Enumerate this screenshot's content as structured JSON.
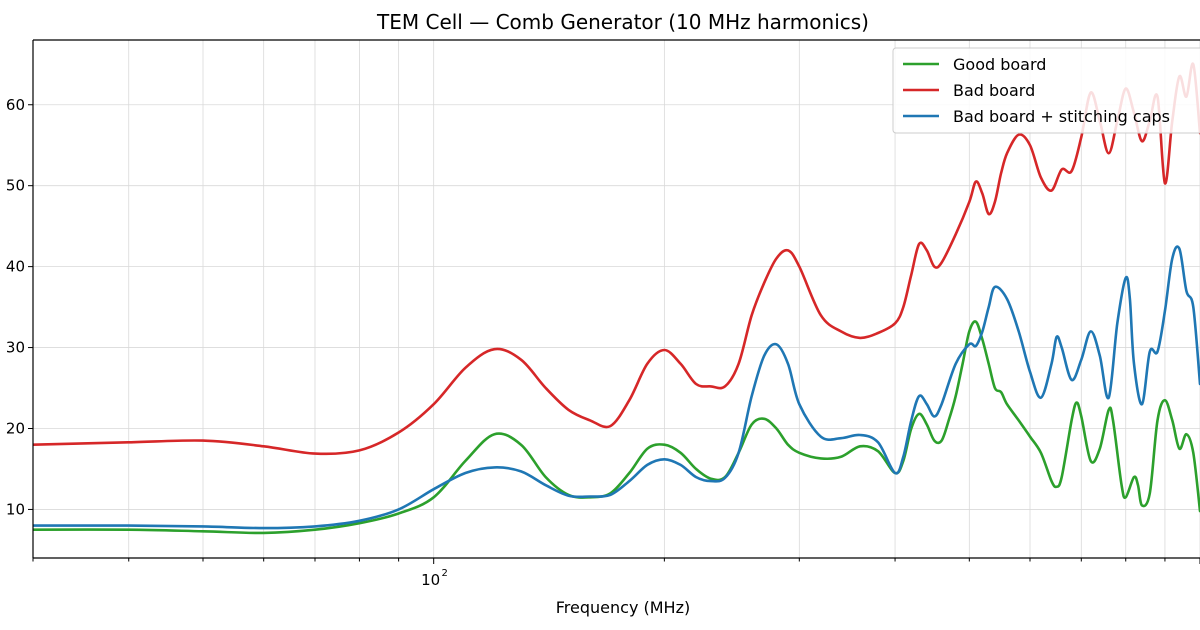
{
  "chart_data": {
    "type": "line",
    "title": "TEM Cell — Comb Generator (10 MHz harmonics)",
    "xlabel": "Frequency (MHz)",
    "ylabel": "",
    "xscale": "log",
    "xlim": [
      30,
      1000
    ],
    "ylim": [
      4,
      68
    ],
    "xticks": [
      {
        "value": 100,
        "base": "10",
        "exp": "2"
      }
    ],
    "yticks": [
      10,
      20,
      30,
      40,
      50,
      60
    ],
    "grid": true,
    "legend": "top-right",
    "series": [
      {
        "name": "Good board",
        "color": "#2ca02c",
        "points": [
          [
            30,
            7.5
          ],
          [
            40,
            7.5
          ],
          [
            50,
            7.3
          ],
          [
            60,
            7.1
          ],
          [
            70,
            7.5
          ],
          [
            80,
            8.3
          ],
          [
            90,
            9.5
          ],
          [
            100,
            11.5
          ],
          [
            110,
            16
          ],
          [
            120,
            19.3
          ],
          [
            130,
            18
          ],
          [
            140,
            14
          ],
          [
            150,
            11.8
          ],
          [
            160,
            11.5
          ],
          [
            170,
            12
          ],
          [
            180,
            14.5
          ],
          [
            190,
            17.5
          ],
          [
            200,
            18
          ],
          [
            210,
            17
          ],
          [
            220,
            15
          ],
          [
            230,
            13.8
          ],
          [
            240,
            14
          ],
          [
            250,
            17
          ],
          [
            260,
            20.5
          ],
          [
            270,
            21.2
          ],
          [
            280,
            20
          ],
          [
            290,
            18
          ],
          [
            300,
            17
          ],
          [
            320,
            16.3
          ],
          [
            340,
            16.5
          ],
          [
            360,
            17.8
          ],
          [
            380,
            17.2
          ],
          [
            400,
            14.5
          ],
          [
            410,
            16
          ],
          [
            420,
            20
          ],
          [
            430,
            21.8
          ],
          [
            440,
            20.5
          ],
          [
            450,
            18.5
          ],
          [
            460,
            18.5
          ],
          [
            470,
            21
          ],
          [
            480,
            24
          ],
          [
            490,
            28
          ],
          [
            500,
            32
          ],
          [
            510,
            33.2
          ],
          [
            520,
            31
          ],
          [
            530,
            28
          ],
          [
            540,
            25
          ],
          [
            550,
            24.5
          ],
          [
            560,
            23
          ],
          [
            580,
            21
          ],
          [
            600,
            19
          ],
          [
            620,
            17
          ],
          [
            640,
            13.5
          ],
          [
            650,
            12.8
          ],
          [
            660,
            14
          ],
          [
            680,
            21
          ],
          [
            690,
            23.2
          ],
          [
            700,
            21.5
          ],
          [
            720,
            16
          ],
          [
            740,
            17.5
          ],
          [
            760,
            22.3
          ],
          [
            770,
            21
          ],
          [
            790,
            13
          ],
          [
            800,
            11.5
          ],
          [
            820,
            14
          ],
          [
            830,
            13
          ],
          [
            840,
            10.5
          ],
          [
            860,
            12
          ],
          [
            880,
            21
          ],
          [
            900,
            23.5
          ],
          [
            920,
            21
          ],
          [
            940,
            17.5
          ],
          [
            960,
            19.3
          ],
          [
            980,
            17
          ],
          [
            1000,
            9.8
          ]
        ]
      },
      {
        "name": "Bad board",
        "color": "#d62728",
        "points": [
          [
            30,
            18
          ],
          [
            40,
            18.3
          ],
          [
            50,
            18.5
          ],
          [
            60,
            17.8
          ],
          [
            70,
            16.9
          ],
          [
            80,
            17.3
          ],
          [
            90,
            19.5
          ],
          [
            100,
            23
          ],
          [
            110,
            27.5
          ],
          [
            120,
            29.8
          ],
          [
            130,
            28.5
          ],
          [
            140,
            25
          ],
          [
            150,
            22.3
          ],
          [
            160,
            21
          ],
          [
            170,
            20.3
          ],
          [
            180,
            23.5
          ],
          [
            190,
            28
          ],
          [
            200,
            29.7
          ],
          [
            210,
            28
          ],
          [
            220,
            25.5
          ],
          [
            230,
            25.2
          ],
          [
            240,
            25.2
          ],
          [
            250,
            28
          ],
          [
            260,
            34
          ],
          [
            270,
            38
          ],
          [
            280,
            41
          ],
          [
            290,
            42
          ],
          [
            300,
            40
          ],
          [
            320,
            34
          ],
          [
            340,
            32
          ],
          [
            360,
            31.2
          ],
          [
            380,
            31.8
          ],
          [
            400,
            33
          ],
          [
            410,
            35
          ],
          [
            420,
            39
          ],
          [
            430,
            42.8
          ],
          [
            440,
            42
          ],
          [
            450,
            40
          ],
          [
            460,
            40.5
          ],
          [
            480,
            44
          ],
          [
            500,
            48
          ],
          [
            510,
            50.5
          ],
          [
            520,
            49
          ],
          [
            530,
            46.5
          ],
          [
            540,
            48
          ],
          [
            550,
            51.5
          ],
          [
            560,
            54
          ],
          [
            580,
            56.3
          ],
          [
            600,
            55
          ],
          [
            620,
            51
          ],
          [
            640,
            49.4
          ],
          [
            660,
            52
          ],
          [
            680,
            51.8
          ],
          [
            700,
            56
          ],
          [
            720,
            61.5
          ],
          [
            740,
            58
          ],
          [
            760,
            54
          ],
          [
            780,
            58
          ],
          [
            800,
            62
          ],
          [
            820,
            59
          ],
          [
            840,
            55.5
          ],
          [
            860,
            58
          ],
          [
            880,
            61
          ],
          [
            900,
            50.3
          ],
          [
            920,
            58
          ],
          [
            940,
            63.5
          ],
          [
            960,
            61
          ],
          [
            980,
            65
          ],
          [
            1000,
            56.5
          ]
        ]
      },
      {
        "name": "Bad board + stitching caps",
        "color": "#1f77b4",
        "points": [
          [
            30,
            8
          ],
          [
            40,
            8
          ],
          [
            50,
            7.9
          ],
          [
            60,
            7.7
          ],
          [
            70,
            7.9
          ],
          [
            80,
            8.6
          ],
          [
            90,
            10
          ],
          [
            100,
            12.5
          ],
          [
            110,
            14.5
          ],
          [
            120,
            15.2
          ],
          [
            130,
            14.7
          ],
          [
            140,
            13
          ],
          [
            150,
            11.7
          ],
          [
            160,
            11.6
          ],
          [
            170,
            11.8
          ],
          [
            180,
            13.5
          ],
          [
            190,
            15.5
          ],
          [
            200,
            16.2
          ],
          [
            210,
            15.5
          ],
          [
            220,
            14
          ],
          [
            230,
            13.5
          ],
          [
            240,
            13.9
          ],
          [
            250,
            17
          ],
          [
            260,
            24
          ],
          [
            270,
            29
          ],
          [
            280,
            30.4
          ],
          [
            290,
            28
          ],
          [
            300,
            23
          ],
          [
            320,
            19
          ],
          [
            340,
            18.8
          ],
          [
            360,
            19.2
          ],
          [
            380,
            18.3
          ],
          [
            400,
            14.5
          ],
          [
            410,
            16.5
          ],
          [
            420,
            21
          ],
          [
            430,
            24
          ],
          [
            440,
            23
          ],
          [
            450,
            21.5
          ],
          [
            460,
            23
          ],
          [
            480,
            28
          ],
          [
            500,
            30.4
          ],
          [
            510,
            30.2
          ],
          [
            520,
            32
          ],
          [
            530,
            35
          ],
          [
            540,
            37.5
          ],
          [
            560,
            36
          ],
          [
            580,
            32
          ],
          [
            600,
            27
          ],
          [
            620,
            23.8
          ],
          [
            640,
            28
          ],
          [
            650,
            31.3
          ],
          [
            660,
            30
          ],
          [
            680,
            26
          ],
          [
            700,
            28.5
          ],
          [
            720,
            32
          ],
          [
            740,
            29
          ],
          [
            760,
            23.8
          ],
          [
            780,
            33
          ],
          [
            800,
            38.6
          ],
          [
            810,
            36
          ],
          [
            820,
            28
          ],
          [
            840,
            23
          ],
          [
            860,
            29.5
          ],
          [
            880,
            29.5
          ],
          [
            900,
            34.5
          ],
          [
            920,
            41
          ],
          [
            940,
            42.2
          ],
          [
            960,
            37
          ],
          [
            980,
            35
          ],
          [
            1000,
            25.5
          ]
        ]
      }
    ]
  }
}
